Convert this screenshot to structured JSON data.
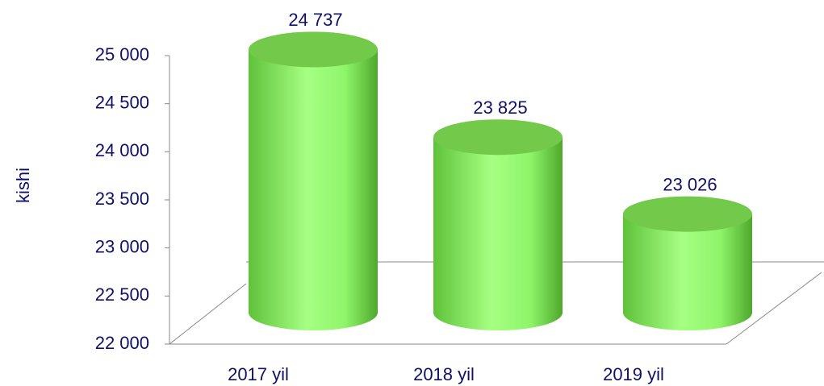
{
  "chart_data": {
    "type": "bar",
    "y_label": "kishi",
    "categories": [
      "2017 yil",
      "2018 yil",
      "2019 yil"
    ],
    "values": [
      24737,
      23825,
      23026
    ],
    "value_labels": [
      "24 737",
      "23 825",
      "23 026"
    ],
    "color": "#8ef56a",
    "ylim": [
      22000,
      25000
    ],
    "yticks": [
      {
        "value": 22000,
        "label": "22 000"
      },
      {
        "value": 22500,
        "label": "22 500"
      },
      {
        "value": 23000,
        "label": "23 000"
      },
      {
        "value": 23500,
        "label": "23 500"
      },
      {
        "value": 24000,
        "label": "24 000"
      },
      {
        "value": 24500,
        "label": "24 500"
      },
      {
        "value": 25000,
        "label": "25 000"
      }
    ]
  }
}
